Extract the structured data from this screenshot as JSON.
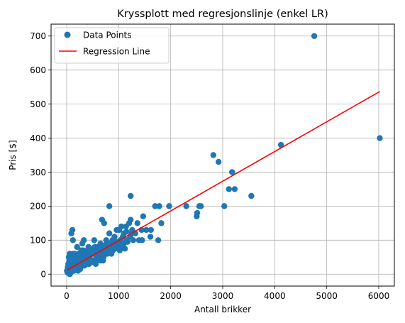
{
  "chart_data": {
    "type": "scatter",
    "title": "Kryssplott med regresjonslinje (enkel LR)",
    "xlabel": "Antall brikker",
    "ylabel": "Pris [$]",
    "xlim": [
      -300,
      6300
    ],
    "ylim": [
      -35,
      735
    ],
    "xticks": [
      0,
      1000,
      2000,
      3000,
      4000,
      5000,
      6000
    ],
    "yticks": [
      0,
      100,
      200,
      300,
      400,
      500,
      600,
      700
    ],
    "grid": true,
    "legend_position": "top-left",
    "series": [
      {
        "name": "Data Points",
        "kind": "scatter",
        "color": "#1f77b4",
        "points": [
          [
            4760,
            700
          ],
          [
            6020,
            400
          ],
          [
            4120,
            380
          ],
          [
            2820,
            350
          ],
          [
            2920,
            330
          ],
          [
            3180,
            300
          ],
          [
            3120,
            250
          ],
          [
            3230,
            250
          ],
          [
            3550,
            230
          ],
          [
            1230,
            230
          ],
          [
            3030,
            200
          ],
          [
            2550,
            200
          ],
          [
            2580,
            200
          ],
          [
            2300,
            200
          ],
          [
            2510,
            180
          ],
          [
            2500,
            170
          ],
          [
            1970,
            200
          ],
          [
            1700,
            200
          ],
          [
            1780,
            200
          ],
          [
            820,
            200
          ],
          [
            1470,
            170
          ],
          [
            1230,
            160
          ],
          [
            1360,
            150
          ],
          [
            1820,
            150
          ],
          [
            680,
            160
          ],
          [
            720,
            150
          ],
          [
            1200,
            150
          ],
          [
            1140,
            140
          ],
          [
            1260,
            130
          ],
          [
            1440,
            130
          ],
          [
            1530,
            130
          ],
          [
            1620,
            130
          ],
          [
            1010,
            130
          ],
          [
            1050,
            140
          ],
          [
            960,
            130
          ],
          [
            820,
            120
          ],
          [
            1320,
            120
          ],
          [
            1220,
            110
          ],
          [
            1080,
            110
          ],
          [
            920,
            110
          ],
          [
            1450,
            100
          ],
          [
            1760,
            100
          ],
          [
            1610,
            110
          ],
          [
            1390,
            100
          ],
          [
            1280,
            100
          ],
          [
            880,
            100
          ],
          [
            760,
            100
          ],
          [
            530,
            100
          ],
          [
            330,
            100
          ],
          [
            110,
            130
          ],
          [
            90,
            120
          ],
          [
            120,
            100
          ],
          [
            200,
            80
          ],
          [
            280,
            70
          ],
          [
            300,
            90
          ],
          [
            420,
            80
          ],
          [
            480,
            60
          ],
          [
            550,
            70
          ],
          [
            600,
            80
          ],
          [
            650,
            90
          ],
          [
            700,
            80
          ],
          [
            750,
            70
          ],
          [
            800,
            90
          ],
          [
            850,
            80
          ],
          [
            900,
            90
          ],
          [
            950,
            80
          ],
          [
            1000,
            80
          ],
          [
            1050,
            90
          ],
          [
            1100,
            90
          ],
          [
            1150,
            100
          ],
          [
            660,
            60
          ],
          [
            710,
            50
          ],
          [
            570,
            50
          ],
          [
            500,
            40
          ],
          [
            440,
            50
          ],
          [
            380,
            40
          ],
          [
            330,
            50
          ],
          [
            270,
            40
          ],
          [
            230,
            60
          ],
          [
            180,
            50
          ],
          [
            150,
            60
          ],
          [
            100,
            50
          ],
          [
            60,
            60
          ],
          [
            40,
            50
          ],
          [
            30,
            30
          ],
          [
            20,
            20
          ],
          [
            10,
            10
          ],
          [
            40,
            20
          ],
          [
            60,
            25
          ],
          [
            90,
            30
          ],
          [
            120,
            20
          ],
          [
            150,
            30
          ],
          [
            190,
            25
          ],
          [
            230,
            20
          ],
          [
            260,
            30
          ],
          [
            300,
            30
          ],
          [
            340,
            25
          ],
          [
            390,
            30
          ],
          [
            430,
            30
          ],
          [
            470,
            40
          ],
          [
            520,
            35
          ],
          [
            560,
            30
          ],
          [
            610,
            45
          ],
          [
            650,
            40
          ],
          [
            700,
            40
          ],
          [
            60,
            0
          ],
          [
            100,
            10
          ],
          [
            140,
            10
          ],
          [
            180,
            15
          ],
          [
            220,
            10
          ],
          [
            260,
            15
          ],
          [
            40,
            5
          ],
          [
            80,
            5
          ],
          [
            15,
            5
          ],
          [
            5,
            10
          ],
          [
            70,
            30
          ],
          [
            110,
            40
          ],
          [
            160,
            40
          ],
          [
            210,
            40
          ],
          [
            250,
            50
          ],
          [
            290,
            55
          ],
          [
            350,
            60
          ],
          [
            410,
            60
          ],
          [
            460,
            65
          ],
          [
            510,
            60
          ],
          [
            540,
            80
          ],
          [
            590,
            60
          ],
          [
            620,
            65
          ],
          [
            680,
            70
          ],
          [
            730,
            65
          ],
          [
            780,
            60
          ],
          [
            840,
            70
          ],
          [
            890,
            70
          ],
          [
            940,
            75
          ],
          [
            990,
            90
          ],
          [
            1030,
            100
          ],
          [
            1100,
            120
          ],
          [
            1150,
            125
          ],
          [
            1170,
            95
          ],
          [
            1250,
            120
          ],
          [
            50,
            40
          ],
          [
            130,
            60
          ],
          [
            170,
            35
          ],
          [
            240,
            45
          ],
          [
            320,
            70
          ],
          [
            360,
            45
          ],
          [
            400,
            70
          ],
          [
            450,
            45
          ],
          [
            490,
            75
          ],
          [
            580,
            55
          ],
          [
            630,
            55
          ],
          [
            690,
            55
          ],
          [
            740,
            85
          ],
          [
            790,
            75
          ],
          [
            860,
            60
          ],
          [
            910,
            85
          ],
          [
            970,
            95
          ],
          [
            1020,
            70
          ],
          [
            1070,
            80
          ],
          [
            1120,
            75
          ]
        ]
      },
      {
        "name": "Regression Line",
        "kind": "line",
        "color": "#ff0000",
        "points": [
          [
            20,
            13
          ],
          [
            6020,
            537
          ]
        ]
      }
    ]
  }
}
